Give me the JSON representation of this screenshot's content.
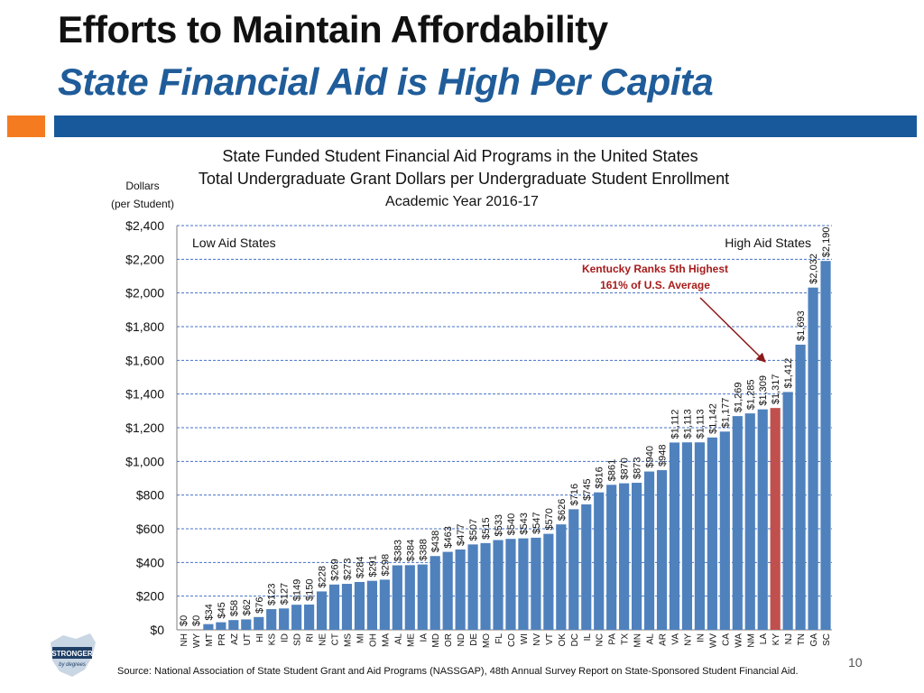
{
  "header": {
    "title": "Efforts to Maintain Affordability",
    "subtitle": "State Financial Aid is High Per Capita"
  },
  "colors": {
    "title": "#111111",
    "subtitle": "#1f5c99",
    "accent_bar": "#17599b",
    "accent_square": "#f47b20",
    "bar": "#4f81bd",
    "highlight_bar": "#c0504d",
    "arrow": "#8b1a1a",
    "callout_text": "#a61c1c"
  },
  "chart_data": {
    "type": "bar",
    "title_lines": [
      "State Funded Student Financial Aid Programs in the United States",
      "Total Undergraduate Grant Dollars per Undergraduate Student Enrollment",
      "Academic Year 2016-17"
    ],
    "ylabel_lines": [
      "Dollars",
      "(per Student)"
    ],
    "ylim": [
      0,
      2400
    ],
    "ytick_step": 200,
    "yticks": [
      "$0",
      "$200",
      "$400",
      "$600",
      "$800",
      "$1,000",
      "$1,200",
      "$1,400",
      "$1,600",
      "$1,800",
      "$2,000",
      "$2,200",
      "$2,400"
    ],
    "grid": true,
    "categories": [
      "NH",
      "WY",
      "MT",
      "PR",
      "AZ",
      "UT",
      "HI",
      "KS",
      "ID",
      "SD",
      "RI",
      "NE",
      "CT",
      "MS",
      "MI",
      "OH",
      "MA",
      "AL",
      "ME",
      "IA",
      "MD",
      "OR",
      "ND",
      "DE",
      "MO",
      "FL",
      "CO",
      "WI",
      "NV",
      "VT",
      "OK",
      "DC",
      "IL",
      "NC",
      "PA",
      "TX",
      "MN",
      "AL",
      "AR",
      "VA",
      "NY",
      "IN",
      "WV",
      "CA",
      "WA",
      "NM",
      "LA",
      "KY",
      "NJ",
      "TN",
      "GA",
      "SC"
    ],
    "values": [
      0,
      0,
      34,
      45,
      58,
      62,
      76,
      123,
      127,
      149,
      150,
      228,
      269,
      273,
      284,
      291,
      298,
      383,
      384,
      388,
      438,
      463,
      477,
      507,
      515,
      533,
      540,
      543,
      547,
      570,
      626,
      716,
      745,
      816,
      861,
      870,
      873,
      940,
      948,
      1112,
      1113,
      1113,
      1142,
      1177,
      1269,
      1285,
      1309,
      1317,
      1412,
      1693,
      2032,
      2190
    ],
    "value_labels": [
      "$0",
      "$0",
      "$34",
      "$45",
      "$58",
      "$62",
      "$76",
      "$123",
      "$127",
      "$149",
      "$150",
      "$228",
      "$269",
      "$273",
      "$284",
      "$291",
      "$298",
      "$383",
      "$384",
      "$388",
      "$438",
      "$463",
      "$477",
      "$507",
      "$515",
      "$533",
      "$540",
      "$543",
      "$547",
      "$570",
      "$626",
      "$716",
      "$745",
      "$816",
      "$861",
      "$870",
      "$873",
      "$940",
      "$948",
      "$1,112",
      "$1,113",
      "$1,113",
      "$1,142",
      "$1,177",
      "$1,269",
      "$1,285",
      "$1,309",
      "$1,317",
      "$1,412",
      "$1,693",
      "$2,032",
      "$2,190"
    ],
    "highlight_index": 47,
    "annotations": {
      "low": "Low Aid States",
      "high": "High Aid States",
      "callout_line1": "Kentucky Ranks 5th Highest",
      "callout_line2": "161% of U.S. Average"
    }
  },
  "footer": {
    "source": "Source:  National Association of State Student Grant and Aid Programs (NASSGAP),  48th Annual Survey Report on State-Sponsored Student Financial Aid.",
    "page_number": "10",
    "logo_line1": "STRONGER",
    "logo_line2": "by degrees"
  }
}
